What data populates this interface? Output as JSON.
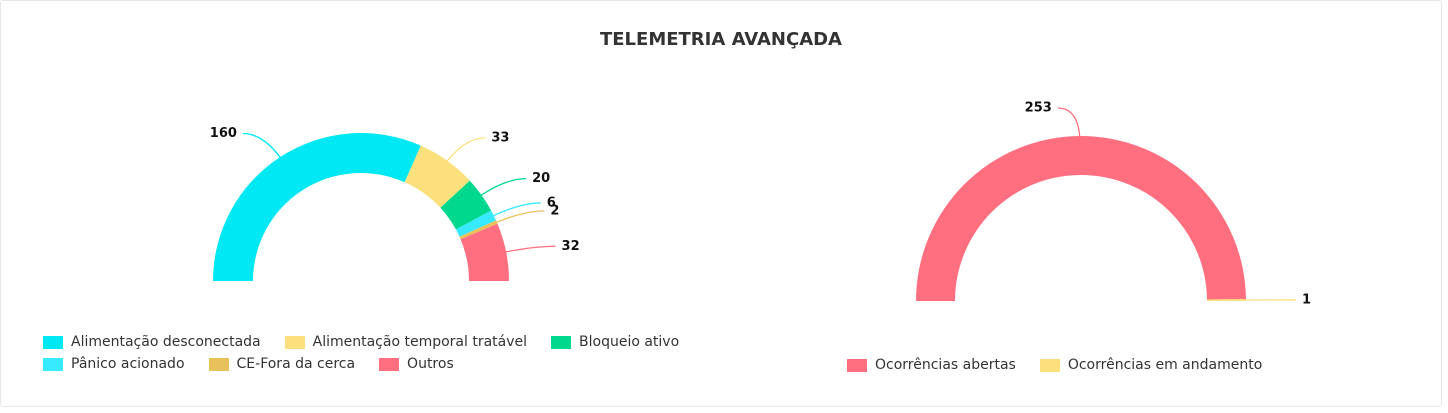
{
  "title": "TELEMETRIA AVANÇADA",
  "chart_data": [
    {
      "type": "half-donut",
      "categories": [
        "Alimentação desconectada",
        "Alimentação temporal tratável",
        "Bloqueio ativo",
        "Pânico acionado",
        "CE-Fora da cerca",
        "Outros"
      ],
      "values": [
        160,
        33,
        20,
        6,
        2,
        32
      ],
      "colors": [
        "#00e8f4",
        "#fde07e",
        "#00d88e",
        "#38eaff",
        "#e9c15a",
        "#ff6f7f"
      ]
    },
    {
      "type": "half-donut",
      "categories": [
        "Ocorrências abertas",
        "Ocorrências em andamento"
      ],
      "values": [
        253,
        1
      ],
      "colors": [
        "#ff6f7f",
        "#fde07e"
      ]
    }
  ]
}
